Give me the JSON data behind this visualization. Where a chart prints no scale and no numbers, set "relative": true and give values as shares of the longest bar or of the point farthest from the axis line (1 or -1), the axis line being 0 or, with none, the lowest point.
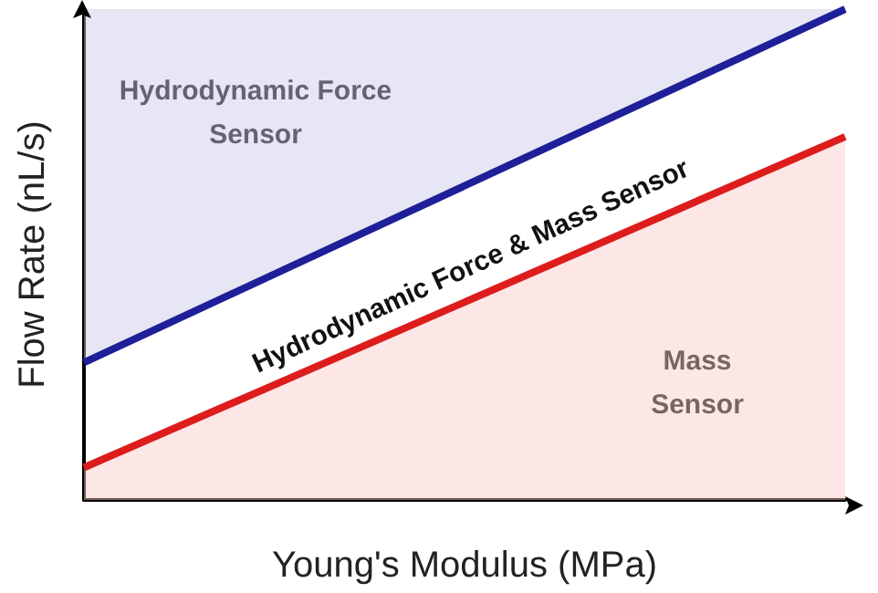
{
  "chart_data": {
    "type": "area",
    "relative": true,
    "xlabel": "Young's Modulus (MPa)",
    "ylabel": "Flow Rate (nL/s)",
    "categories": [
      null,
      null
    ],
    "series": [
      {
        "color": "#1f1f99",
        "values": [
          0.28,
          1.0
        ]
      },
      {
        "color": "#dd1c1c",
        "values": [
          0.066,
          0.74
        ]
      }
    ],
    "annotations": [
      "Hydrodynamic Force\nSensor",
      "Hydrodynamic Force & Mass Sensor",
      "Mass\nSensor"
    ],
    "grid": false,
    "marker": "none",
    "line_style": "solid"
  }
}
